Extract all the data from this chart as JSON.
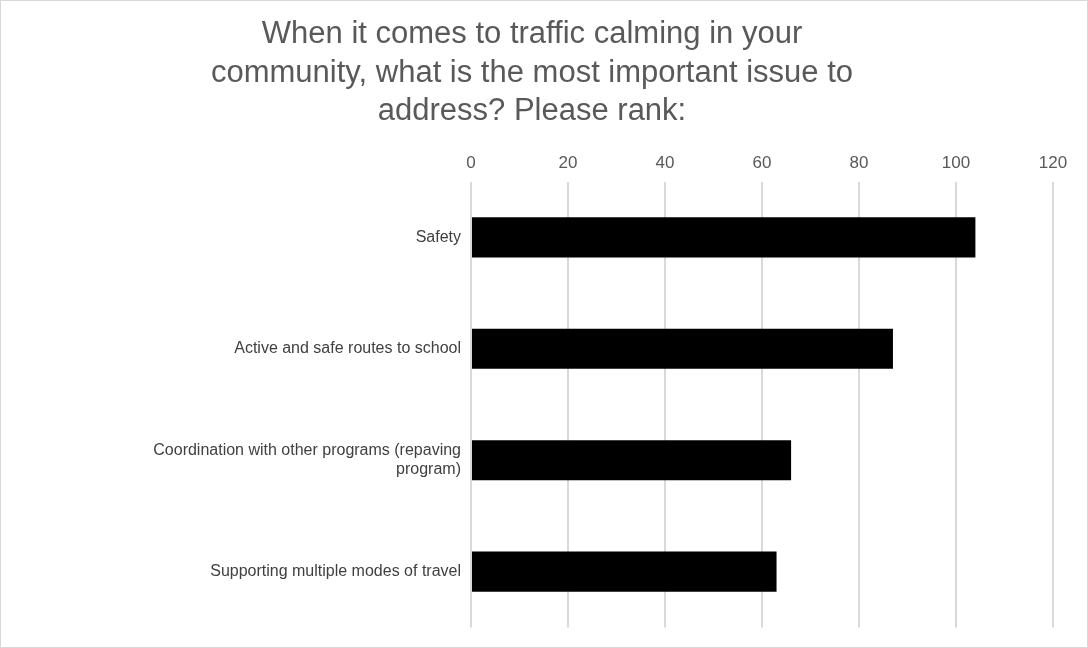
{
  "chart_data": {
    "type": "bar",
    "orientation": "horizontal",
    "title": "When it comes to traffic calming in your community, what is the most important issue to address? Please rank:",
    "categories": [
      "Safety",
      "Active and safe routes to school",
      "Coordination with other programs (repaving program)",
      "Supporting multiple modes of travel"
    ],
    "values": [
      104,
      87,
      66,
      63
    ],
    "color": "#000000",
    "xlim": [
      0,
      120
    ],
    "xticks": [
      0,
      20,
      40,
      60,
      80,
      100,
      120
    ],
    "grid": "x",
    "legend": false
  }
}
